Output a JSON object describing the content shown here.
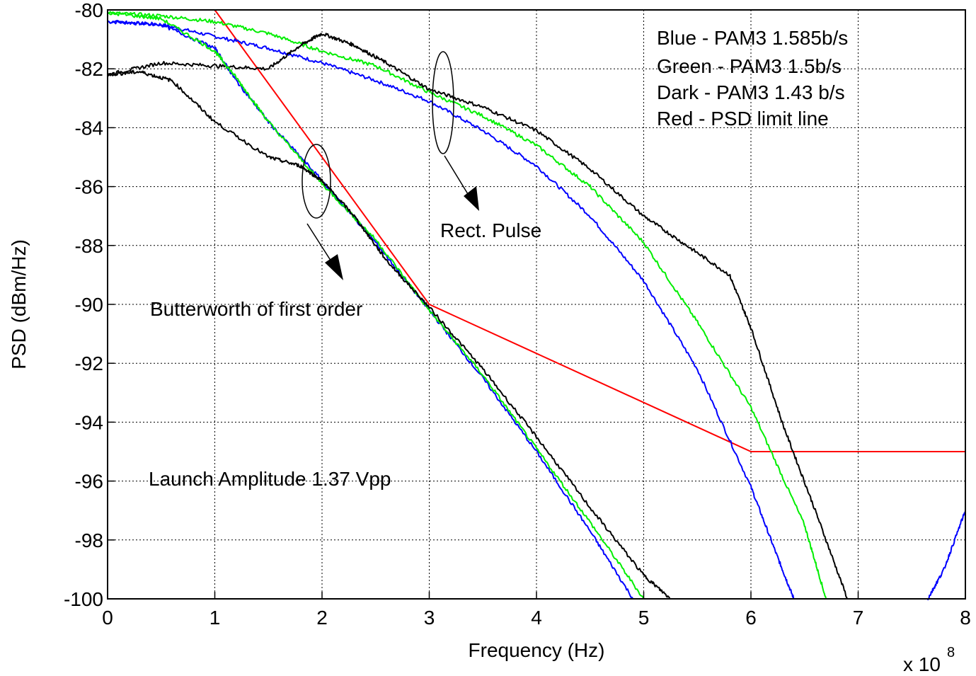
{
  "chart_data": {
    "type": "line",
    "title": "",
    "xlabel": "Frequency (Hz)",
    "ylabel": "PSD (dBm/Hz)",
    "x_exponent_label": "x 10",
    "x_exponent": "8",
    "xlim": [
      0,
      8
    ],
    "ylim": [
      -100,
      -80
    ],
    "x_scale": 100000000,
    "xticks": [
      0,
      1,
      2,
      3,
      4,
      5,
      6,
      7,
      8
    ],
    "yticks": [
      -100,
      -98,
      -96,
      -94,
      -92,
      -90,
      -88,
      -86,
      -84,
      -82,
      -80
    ],
    "grid": true,
    "grid_style": "dotted",
    "legend_placement": "top-right",
    "legend": [
      "Blue - PAM3 1.585b/s",
      "Green - PAM3 1.5b/s",
      "Dark - PAM3 1.43 b/s",
      "Red - PSD limit line"
    ],
    "annotations": {
      "rect_pulse": "Rect. Pulse",
      "butterworth": "Butterworth of first order",
      "launch": "Launch Amplitude 1.37 Vpp"
    },
    "series": [
      {
        "color": "#ff0000",
        "x": [
          1.0,
          3.0,
          6.0,
          8.0
        ],
        "y": [
          -80,
          -90,
          -95,
          -95
        ]
      },
      {
        "color": "#0000ff",
        "x": [
          0,
          0.5,
          1.0,
          1.5,
          2.0,
          2.5,
          3.0,
          3.5,
          4.0,
          4.5,
          5.0,
          5.5,
          6.0,
          6.25,
          6.4
        ],
        "y": [
          -80.4,
          -80.5,
          -80.9,
          -81.3,
          -81.8,
          -82.4,
          -83.1,
          -84.1,
          -85.3,
          -87.0,
          -89.2,
          -92.2,
          -96.2,
          -98.6,
          -100
        ]
      },
      {
        "color": "#00ee00",
        "x": [
          0,
          0.5,
          1.0,
          1.5,
          2.0,
          2.5,
          3.0,
          3.5,
          4.0,
          4.5,
          5.0,
          5.5,
          6.0,
          6.5,
          6.7
        ],
        "y": [
          -80.1,
          -80.2,
          -80.4,
          -80.8,
          -81.4,
          -81.9,
          -82.8,
          -83.6,
          -84.6,
          -86.0,
          -87.9,
          -90.6,
          -93.5,
          -97.5,
          -100
        ]
      },
      {
        "color": "#000000",
        "x": [
          0,
          0.5,
          1.0,
          1.5,
          1.8,
          2.0,
          2.3,
          2.6,
          3.0,
          3.5,
          4.0,
          4.5,
          5.0,
          5.4,
          5.8,
          6.0,
          6.3,
          6.6,
          6.9
        ],
        "y": [
          -82.2,
          -81.8,
          -81.9,
          -82.0,
          -81.2,
          -80.8,
          -81.2,
          -81.8,
          -82.7,
          -83.3,
          -84.1,
          -85.4,
          -87.0,
          -88.0,
          -89.0,
          -90.8,
          -94.1,
          -97.0,
          -100
        ]
      },
      {
        "color": "#0000ff",
        "x": [
          0,
          0.5,
          1.0,
          1.2,
          1.5,
          2.0,
          2.5,
          3.0,
          3.5,
          4.0,
          4.5,
          4.9
        ],
        "y": [
          -80.4,
          -80.5,
          -81.3,
          -82.4,
          -83.8,
          -85.8,
          -87.9,
          -90.2,
          -92.5,
          -95.0,
          -97.7,
          -100
        ]
      },
      {
        "color": "#00ee00",
        "x": [
          0,
          0.5,
          1.0,
          1.2,
          1.5,
          2.0,
          2.5,
          3.0,
          3.5,
          4.0,
          4.5,
          5.0
        ],
        "y": [
          -80.1,
          -80.3,
          -81.4,
          -82.3,
          -83.8,
          -85.9,
          -87.8,
          -90.2,
          -92.4,
          -94.9,
          -97.4,
          -100
        ]
      },
      {
        "color": "#000000",
        "x": [
          0,
          0.3,
          0.6,
          1.0,
          1.5,
          1.8,
          2.0,
          2.3,
          2.6,
          3.0,
          3.5,
          4.0,
          4.5,
          5.0,
          5.25
        ],
        "y": [
          -82.2,
          -82.1,
          -82.4,
          -83.8,
          -85.0,
          -85.3,
          -85.8,
          -87.0,
          -88.5,
          -90.1,
          -92.2,
          -94.5,
          -96.9,
          -99.2,
          -100
        ]
      },
      {
        "color": "#0000ff",
        "x": [
          7.65,
          7.8,
          8.0
        ],
        "y": [
          -100,
          -99.0,
          -97.0
        ]
      }
    ]
  }
}
